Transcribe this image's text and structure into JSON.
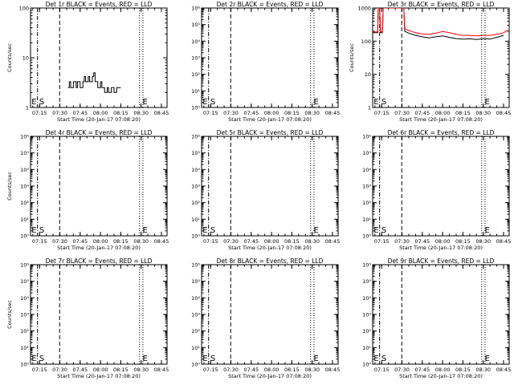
{
  "colors": {
    "background": "#ffffff",
    "axes": "#000000",
    "events": "#000000",
    "lld": "#ff0000"
  },
  "chart_data": [
    {
      "type": "line",
      "title": "Det 1r BLACK = Events, RED = LLD",
      "ylabel": "Counts/sec",
      "xlabel": "Start Time (20-Jan-17 07:08:20)",
      "ylim": [
        1,
        100
      ],
      "y_scale": "log",
      "y_tick_labels": [
        "1",
        "10",
        "100"
      ],
      "xlim": [
        "07:08:20",
        "08:49:10"
      ],
      "x_tick_labels": [
        "07:15",
        "07:30",
        "07:45",
        "08:00",
        "08:15",
        "08:30",
        "08:45"
      ],
      "markers": [
        {
          "label": "E",
          "time": "07:08:30"
        },
        {
          "label": "S",
          "time": "07:14:10"
        },
        {
          "label": "E",
          "time": "08:30:30"
        }
      ],
      "vlines": [
        {
          "style": "dash-dot",
          "time": "07:13:30"
        },
        {
          "style": "dashed",
          "time": "07:29:50"
        },
        {
          "style": "dotted",
          "time": "08:28:50"
        },
        {
          "style": "dotted",
          "time": "08:31:20"
        }
      ],
      "series": [
        {
          "color": "#000000",
          "x": [
            "07:36",
            "07:37",
            "07:37",
            "07:38",
            "07:38",
            "07:40",
            "07:40",
            "07:42",
            "07:42",
            "07:43",
            "07:43",
            "07:45",
            "07:45",
            "07:47",
            "07:47",
            "07:48",
            "07:48",
            "07:49",
            "07:49",
            "07:51",
            "07:51",
            "07:52",
            "07:52",
            "07:54",
            "07:54",
            "07:55",
            "07:55",
            "07:56",
            "07:56",
            "07:58",
            "07:58",
            "08:00",
            "08:00",
            "08:01",
            "08:01",
            "08:03",
            "08:03",
            "08:05",
            "08:05",
            "08:06",
            "08:06",
            "08:08",
            "08:08",
            "08:10",
            "08:10",
            "08:12",
            "08:12",
            "08:15"
          ],
          "values": [
            2.5,
            2.5,
            3.3,
            3.3,
            2.5,
            2.5,
            3.3,
            3.3,
            2.5,
            2.5,
            3.3,
            3.3,
            2.5,
            2.5,
            3.3,
            3.3,
            4.2,
            4.2,
            3.3,
            3.3,
            4.2,
            4.2,
            3.3,
            3.3,
            4.2,
            4.2,
            5.0,
            5.0,
            3.3,
            3.3,
            2.5,
            2.5,
            3.3,
            3.3,
            2.5,
            2.5,
            2.0,
            2.0,
            2.5,
            2.5,
            2.0,
            2.0,
            2.5,
            2.5,
            2.0,
            2.0,
            2.5,
            2.5
          ]
        }
      ]
    },
    {
      "type": "line",
      "title": "Det 2r BLACK = Events, RED = LLD",
      "ylabel": "",
      "xlabel": "Start Time (20-Jan-17 07:08:20)",
      "ylim": [
        1,
        1000000
      ],
      "y_scale": "log",
      "y_tick_labels": [
        "10⁰",
        "10¹",
        "10²",
        "10³",
        "10⁴",
        "10⁵",
        "10⁶"
      ],
      "xlim": [
        "07:08:20",
        "08:49:10"
      ],
      "x_tick_labels": [
        "07:15",
        "07:30",
        "07:45",
        "08:00",
        "08:15",
        "08:30",
        "08:45"
      ],
      "markers": [
        {
          "label": "E",
          "time": "07:08:30"
        },
        {
          "label": "S",
          "time": "07:14:10"
        },
        {
          "label": "E",
          "time": "08:30:30"
        }
      ],
      "vlines": [
        {
          "style": "dash-dot",
          "time": "07:13:30"
        },
        {
          "style": "dashed",
          "time": "07:29:50"
        },
        {
          "style": "dotted",
          "time": "08:28:50"
        },
        {
          "style": "dotted",
          "time": "08:31:20"
        }
      ],
      "series": []
    },
    {
      "type": "line",
      "title": "Det 3r BLACK = Events, RED = LLD",
      "ylabel": "Counts/sec",
      "xlabel": "Start Time (20-Jan-17 07:08:20)",
      "ylim": [
        1,
        1000
      ],
      "y_scale": "log",
      "y_tick_labels": [
        "1",
        "10",
        "100",
        "1000"
      ],
      "xlim": [
        "07:08:20",
        "08:49:10"
      ],
      "x_tick_labels": [
        "07:15",
        "07:30",
        "07:45",
        "08:00",
        "08:15",
        "08:30",
        "08:45"
      ],
      "markers": [
        {
          "label": "E",
          "time": "07:08:30"
        },
        {
          "label": "S",
          "time": "07:14:10"
        },
        {
          "label": "E",
          "time": "08:30:30"
        }
      ],
      "vlines": [
        {
          "style": "dash-dot",
          "time": "07:13:30"
        },
        {
          "style": "dashed",
          "time": "07:29:50"
        },
        {
          "style": "dotted",
          "time": "08:28:50"
        },
        {
          "style": "dotted",
          "time": "08:31:20"
        }
      ],
      "series": [
        {
          "color": "#000000",
          "x": [
            "07:08:20",
            "07:12",
            "07:12:30",
            "07:13:30",
            "07:14:10",
            "07:15:30",
            "07:16:10",
            "07:31:20",
            "07:32",
            "07:35",
            "07:40",
            "07:45",
            "07:50",
            "07:55",
            "08:00",
            "08:05",
            "08:10",
            "08:15",
            "08:20",
            "08:25",
            "08:30",
            "08:35",
            "08:40",
            "08:45"
          ],
          "values": [
            180,
            180,
            1000,
            1000,
            180,
            180,
            1000,
            1000,
            200,
            175,
            150,
            135,
            125,
            135,
            145,
            130,
            120,
            115,
            118,
            112,
            120,
            115,
            130,
            150
          ]
        },
        {
          "color": "#ff0000",
          "x": [
            "07:08:20",
            "07:12",
            "07:12:30",
            "07:13:30",
            "07:14:10",
            "07:15:30",
            "07:16:10",
            "07:31:20",
            "07:32",
            "07:35",
            "07:40",
            "07:45",
            "07:50",
            "07:55",
            "08:00",
            "08:05",
            "08:10",
            "08:15",
            "08:20",
            "08:25",
            "08:30",
            "08:35",
            "08:40",
            "08:45",
            "08:48"
          ],
          "values": [
            190,
            190,
            1000,
            1000,
            190,
            190,
            1000,
            1000,
            240,
            210,
            180,
            165,
            160,
            175,
            195,
            180,
            160,
            150,
            150,
            145,
            150,
            150,
            160,
            180,
            215
          ]
        }
      ]
    },
    {
      "type": "line",
      "title": "Det 4r BLACK = Events, RED = LLD",
      "ylabel": "Counts/sec",
      "xlabel": "Start Time (20-Jan-17 07:08:20)",
      "ylim": [
        1,
        1000000
      ],
      "y_scale": "log",
      "y_tick_labels": [
        "10⁰",
        "10¹",
        "10²",
        "10³",
        "10⁴",
        "10⁵",
        "10⁶"
      ],
      "xlim": [
        "07:08:20",
        "08:49:10"
      ],
      "x_tick_labels": [
        "07:15",
        "07:30",
        "07:45",
        "08:00",
        "08:15",
        "08:30",
        "08:45"
      ],
      "markers": [
        {
          "label": "E",
          "time": "07:08:30"
        },
        {
          "label": "S",
          "time": "07:14:10"
        },
        {
          "label": "E",
          "time": "08:30:30"
        }
      ],
      "vlines": [
        {
          "style": "dash-dot",
          "time": "07:13:30"
        },
        {
          "style": "dashed",
          "time": "07:29:50"
        },
        {
          "style": "dotted",
          "time": "08:28:50"
        },
        {
          "style": "dotted",
          "time": "08:31:20"
        }
      ],
      "series": []
    },
    {
      "type": "line",
      "title": "Det 5r BLACK = Events, RED = LLD",
      "ylabel": "",
      "xlabel": "Start Time (20-Jan-17 07:08:20)",
      "ylim": [
        1,
        1000000
      ],
      "y_scale": "log",
      "y_tick_labels": [
        "10⁰",
        "10¹",
        "10²",
        "10³",
        "10⁴",
        "10⁵",
        "10⁶"
      ],
      "xlim": [
        "07:08:20",
        "08:49:10"
      ],
      "x_tick_labels": [
        "07:15",
        "07:30",
        "07:45",
        "08:00",
        "08:15",
        "08:30",
        "08:45"
      ],
      "markers": [
        {
          "label": "E",
          "time": "07:08:30"
        },
        {
          "label": "S",
          "time": "07:14:10"
        },
        {
          "label": "E",
          "time": "08:30:30"
        }
      ],
      "vlines": [
        {
          "style": "dash-dot",
          "time": "07:13:30"
        },
        {
          "style": "dashed",
          "time": "07:29:50"
        },
        {
          "style": "dotted",
          "time": "08:28:50"
        },
        {
          "style": "dotted",
          "time": "08:31:20"
        }
      ],
      "series": []
    },
    {
      "type": "line",
      "title": "Det 6r BLACK = Events, RED = LLD",
      "ylabel": "",
      "xlabel": "Start Time (20-Jan-17 07:08:20)",
      "ylim": [
        1,
        1000000
      ],
      "y_scale": "log",
      "y_tick_labels": [
        "10⁰",
        "10¹",
        "10²",
        "10³",
        "10⁴",
        "10⁵",
        "10⁶"
      ],
      "xlim": [
        "07:08:20",
        "08:49:10"
      ],
      "x_tick_labels": [
        "07:15",
        "07:30",
        "07:45",
        "08:00",
        "08:15",
        "08:30",
        "08:45"
      ],
      "markers": [
        {
          "label": "E",
          "time": "07:08:30"
        },
        {
          "label": "S",
          "time": "07:14:10"
        },
        {
          "label": "E",
          "time": "08:30:30"
        }
      ],
      "vlines": [
        {
          "style": "dash-dot",
          "time": "07:13:30"
        },
        {
          "style": "dashed",
          "time": "07:29:50"
        },
        {
          "style": "dotted",
          "time": "08:28:50"
        },
        {
          "style": "dotted",
          "time": "08:31:20"
        }
      ],
      "series": []
    },
    {
      "type": "line",
      "title": "Det 7r BLACK = Events, RED = LLD",
      "ylabel": "Counts/sec",
      "xlabel": "Start Time (20-Jan-17 07:08:20)",
      "ylim": [
        1,
        1000000
      ],
      "y_scale": "log",
      "y_tick_labels": [
        "10⁰",
        "10¹",
        "10²",
        "10³",
        "10⁴",
        "10⁵",
        "10⁶"
      ],
      "xlim": [
        "07:08:20",
        "08:49:10"
      ],
      "x_tick_labels": [
        "07:15",
        "07:30",
        "07:45",
        "08:00",
        "08:15",
        "08:30",
        "08:45"
      ],
      "markers": [
        {
          "label": "E",
          "time": "07:08:30"
        },
        {
          "label": "S",
          "time": "07:14:10"
        },
        {
          "label": "E",
          "time": "08:30:30"
        }
      ],
      "vlines": [
        {
          "style": "dash-dot",
          "time": "07:13:30"
        },
        {
          "style": "dashed",
          "time": "07:29:50"
        },
        {
          "style": "dotted",
          "time": "08:28:50"
        },
        {
          "style": "dotted",
          "time": "08:31:20"
        }
      ],
      "series": []
    },
    {
      "type": "line",
      "title": "Det 8r BLACK = Events, RED = LLD",
      "ylabel": "",
      "xlabel": "Start Time (20-Jan-17 07:08:20)",
      "ylim": [
        1,
        1000000
      ],
      "y_scale": "log",
      "y_tick_labels": [
        "10⁰",
        "10¹",
        "10²",
        "10³",
        "10⁴",
        "10⁵",
        "10⁶"
      ],
      "xlim": [
        "07:08:20",
        "08:49:10"
      ],
      "x_tick_labels": [
        "07:15",
        "07:30",
        "07:45",
        "08:00",
        "08:15",
        "08:30",
        "08:45"
      ],
      "markers": [
        {
          "label": "E",
          "time": "07:08:30"
        },
        {
          "label": "S",
          "time": "07:14:10"
        },
        {
          "label": "E",
          "time": "08:30:30"
        }
      ],
      "vlines": [
        {
          "style": "dash-dot",
          "time": "07:13:30"
        },
        {
          "style": "dashed",
          "time": "07:29:50"
        },
        {
          "style": "dotted",
          "time": "08:28:50"
        },
        {
          "style": "dotted",
          "time": "08:31:20"
        }
      ],
      "series": []
    },
    {
      "type": "line",
      "title": "Det 9r BLACK = Events, RED = LLD",
      "ylabel": "",
      "xlabel": "Start Time (20-Jan-17 07:08:20)",
      "ylim": [
        1,
        1000000
      ],
      "y_scale": "log",
      "y_tick_labels": [
        "10⁰",
        "10¹",
        "10²",
        "10³",
        "10⁴",
        "10⁵",
        "10⁶"
      ],
      "xlim": [
        "07:08:20",
        "08:49:10"
      ],
      "x_tick_labels": [
        "07:15",
        "07:30",
        "07:45",
        "08:00",
        "08:15",
        "08:30",
        "08:45"
      ],
      "markers": [
        {
          "label": "E",
          "time": "07:08:30"
        },
        {
          "label": "S",
          "time": "07:14:10"
        },
        {
          "label": "E",
          "time": "08:30:30"
        }
      ],
      "vlines": [
        {
          "style": "dash-dot",
          "time": "07:13:30"
        },
        {
          "style": "dashed",
          "time": "07:29:50"
        },
        {
          "style": "dotted",
          "time": "08:28:50"
        },
        {
          "style": "dotted",
          "time": "08:31:20"
        }
      ],
      "series": []
    }
  ]
}
